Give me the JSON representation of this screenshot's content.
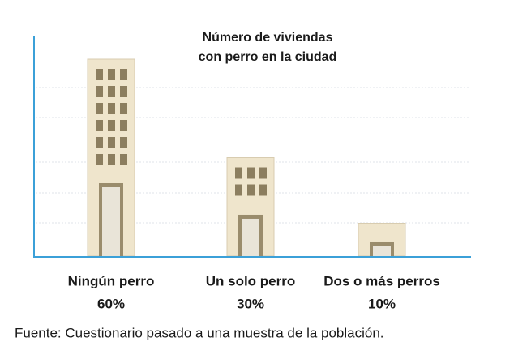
{
  "chart_data": {
    "type": "bar",
    "title_lines": [
      "Número de viviendas",
      "con perro en la ciudad"
    ],
    "categories": [
      "Ningún perro",
      "Un solo perro",
      "Dos o más perros"
    ],
    "values": [
      60,
      30,
      10
    ],
    "value_labels": [
      "60%",
      "30%",
      "10%"
    ],
    "color": "#efe5cc",
    "source": "Fuente: Cuestionario pasado a una muestra de la población."
  }
}
